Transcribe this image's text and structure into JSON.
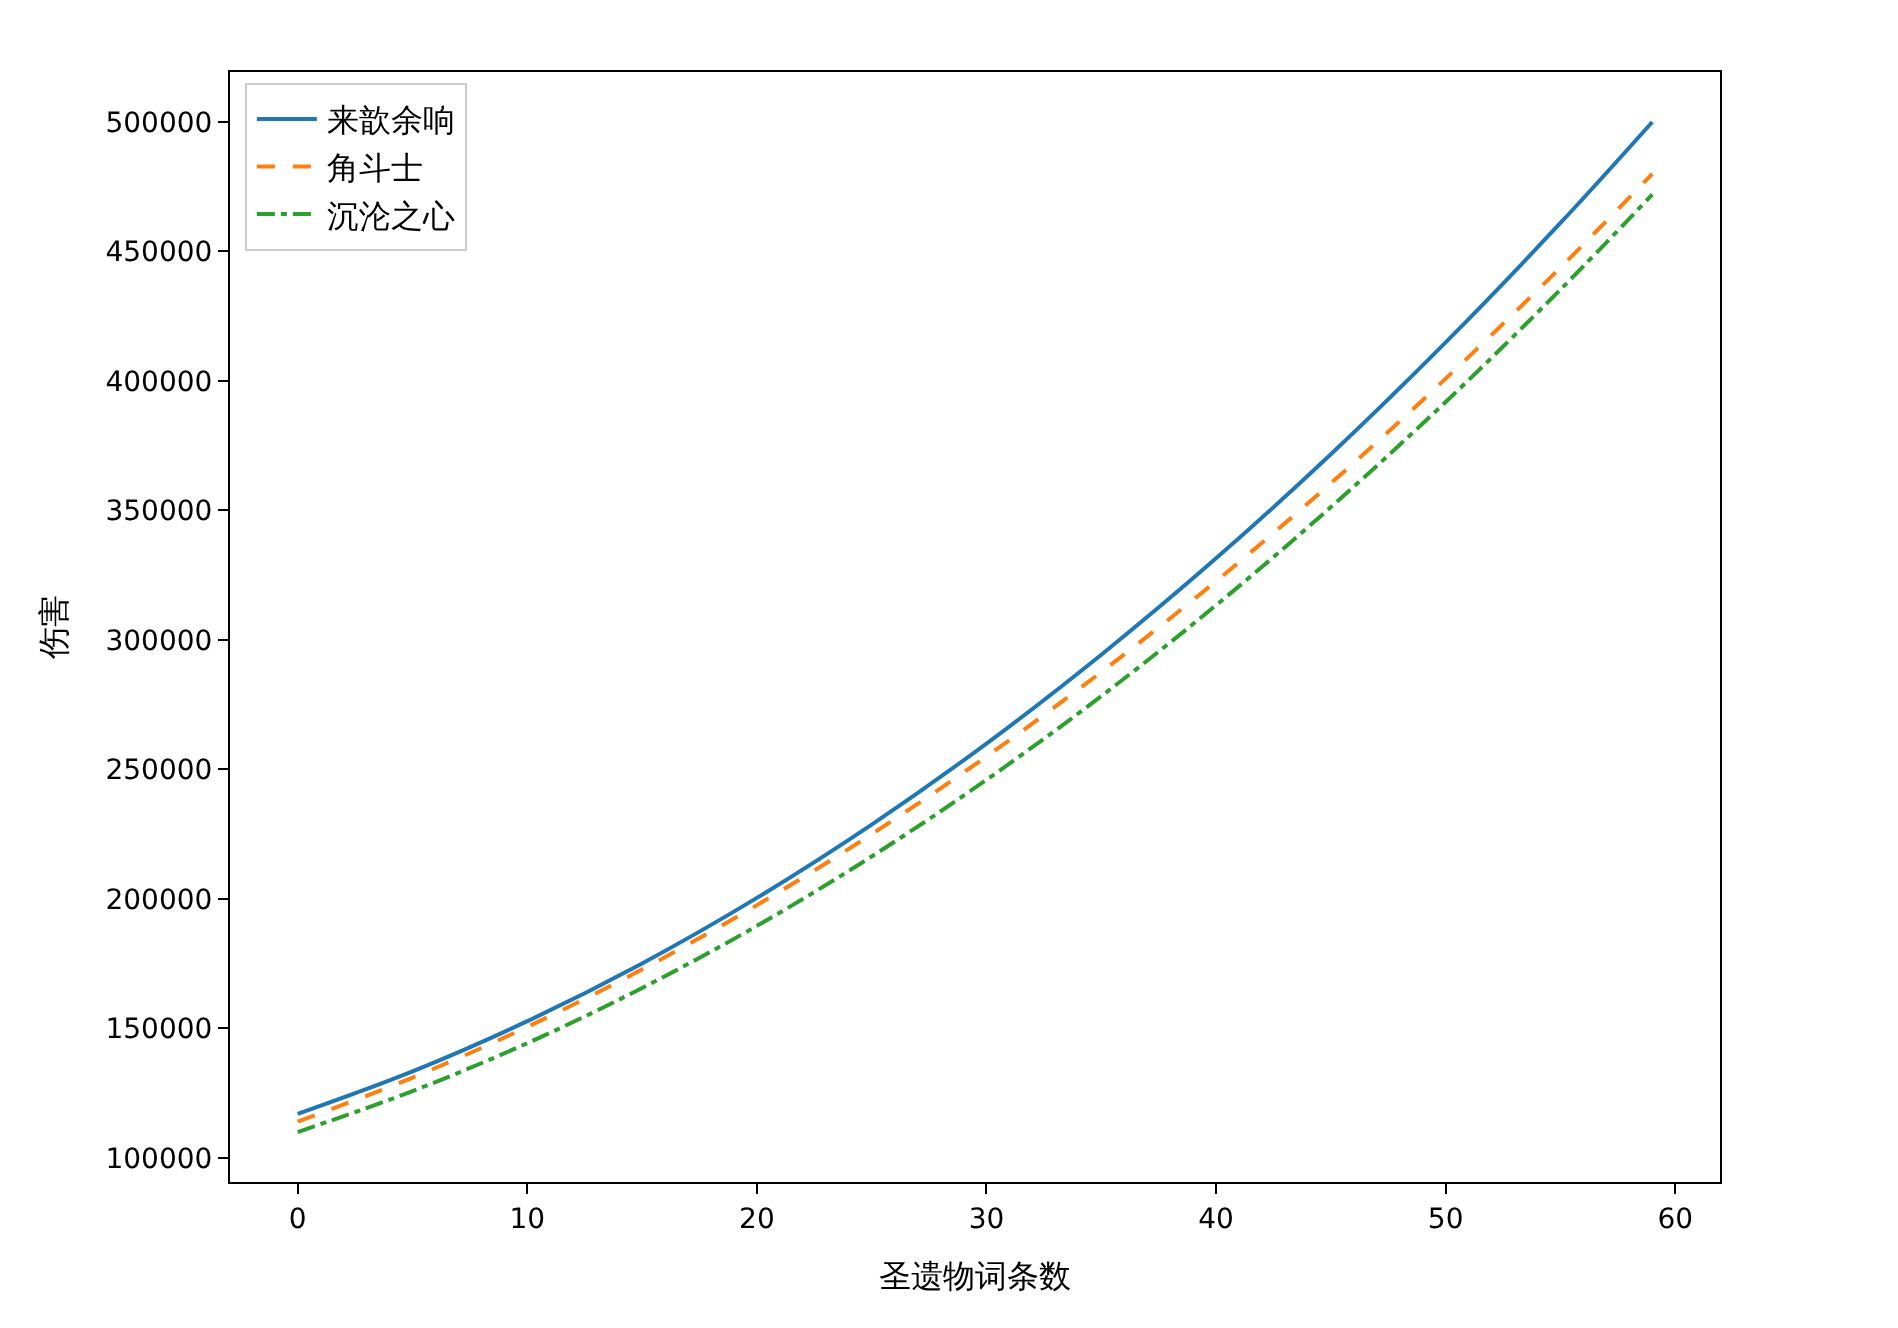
{
  "chart_data": {
    "type": "line",
    "xlabel": "圣遗物词条数",
    "ylabel": "伤害",
    "x": [
      0,
      5,
      10,
      15,
      20,
      25,
      30,
      35,
      40,
      45,
      50,
      55,
      59
    ],
    "series": [
      {
        "name": "来歆余响",
        "color": "#1f77b4",
        "line_style": "solid",
        "values": [
          117000,
          133400,
          152800,
          175100,
          200400,
          228700,
          260000,
          294300,
          331500,
          371700,
          414900,
          461000,
          500000
        ]
      },
      {
        "name": "角斗士",
        "color": "#ff7f0e",
        "line_style": "dashed",
        "values": [
          114000,
          131000,
          150600,
          172800,
          197600,
          225000,
          255000,
          287600,
          322700,
          360500,
          400900,
          443800,
          480000
        ]
      },
      {
        "name": "沉沦之心",
        "color": "#2ca02c",
        "line_style": "dashdot",
        "values": [
          110000,
          125800,
          144300,
          165600,
          189600,
          216400,
          246000,
          278300,
          313400,
          351300,
          391900,
          435300,
          472000
        ]
      }
    ],
    "xlim": [
      -2.95,
      61.95
    ],
    "xticks": [
      0,
      10,
      20,
      30,
      40,
      50,
      60
    ],
    "ylim": [
      90700,
      519300
    ],
    "yticks": [
      100000,
      150000,
      200000,
      250000,
      300000,
      350000,
      400000,
      450000,
      500000
    ],
    "legend": "top left",
    "marker": "none"
  }
}
